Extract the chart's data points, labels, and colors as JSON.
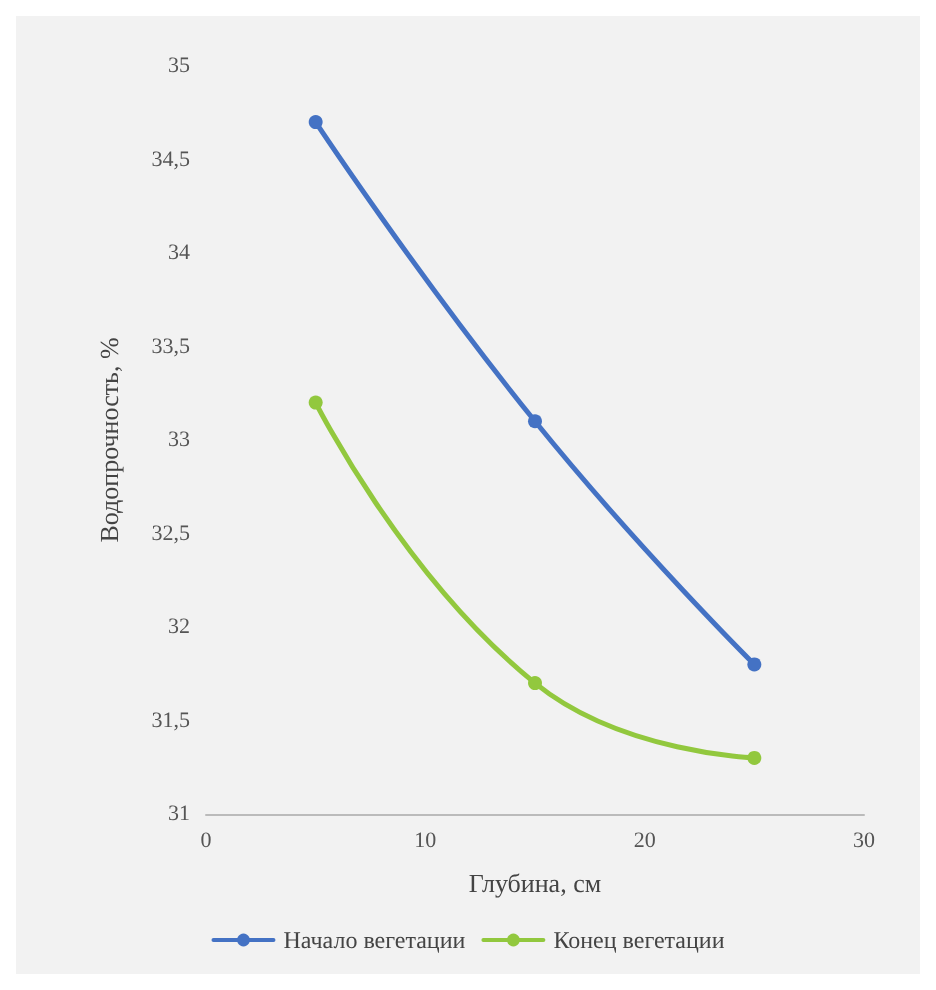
{
  "chart_data": {
    "type": "line",
    "xlabel": "Глубина, см",
    "ylabel": "Водопрочность, %",
    "x": [
      5,
      15,
      25
    ],
    "series": [
      {
        "name": "Начало вегетации",
        "color": "#4472c4",
        "values": [
          34.7,
          33.1,
          31.8
        ]
      },
      {
        "name": "Конец вегетации",
        "color": "#92c83e",
        "values": [
          33.2,
          31.7,
          31.3
        ]
      }
    ],
    "xlim": [
      0,
      30
    ],
    "xticks": [
      0,
      10,
      20,
      30
    ],
    "ylim": [
      31,
      35
    ],
    "yticks": [
      31,
      {
        "value": 31.5,
        "label": "31,5"
      },
      32,
      {
        "value": 32.5,
        "label": "32,5"
      },
      33,
      {
        "value": 33.5,
        "label": "33,5"
      },
      34,
      {
        "value": 34.5,
        "label": "34,5"
      },
      35
    ],
    "grid": false,
    "legend": "bottom",
    "marker": "circle",
    "line_style": "solid"
  }
}
